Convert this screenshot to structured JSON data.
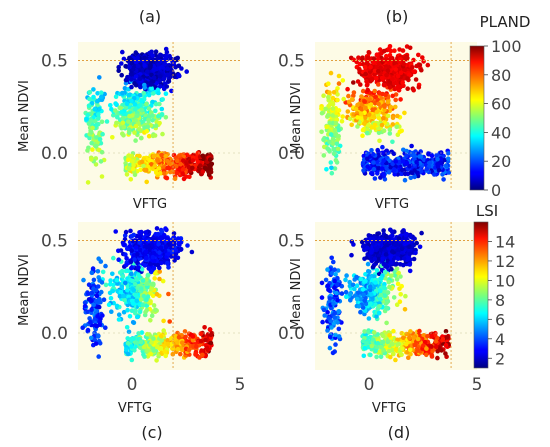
{
  "figure": {
    "colorbars": [
      {
        "label": "PLAND",
        "ticks": [
          "0",
          "20",
          "40",
          "60",
          "80",
          "100"
        ],
        "min": 0,
        "max": 100
      },
      {
        "label": "LSI",
        "ticks": [
          "2",
          "4",
          "6",
          "8",
          "10",
          "12",
          "14"
        ],
        "min": 1,
        "max": 16
      }
    ]
  },
  "chart_data": [
    {
      "type": "scatter",
      "panel_label": "(a)",
      "xlabel": "VFTG",
      "ylabel": "Mean NDVI",
      "xlim": [
        -2.5,
        5
      ],
      "ylim": [
        -0.2,
        0.6
      ],
      "yticks": [
        "0.0",
        "0.5"
      ],
      "xticks": [],
      "colorbar": "PLAND",
      "x_ref_line": 1.9,
      "y_ref_line": 0.5,
      "pattern": "a"
    },
    {
      "type": "scatter",
      "panel_label": "(b)",
      "xlabel": "VFTG",
      "ylabel": "Mean NDVI",
      "xlim": [
        -2.5,
        5
      ],
      "ylim": [
        -0.2,
        0.6
      ],
      "yticks": [
        "0.0",
        "0.5"
      ],
      "xticks": [],
      "colorbar": "PLAND",
      "x_ref_line": 3.8,
      "y_ref_line": 0.5,
      "pattern": "b"
    },
    {
      "type": "scatter",
      "panel_label": "(c)",
      "xlabel": "VFTG",
      "ylabel": "Mean NDVI",
      "xlim": [
        -2.5,
        5
      ],
      "ylim": [
        -0.2,
        0.6
      ],
      "yticks": [
        "0.0",
        "0.5"
      ],
      "xticks": [
        "0",
        "5"
      ],
      "colorbar": "LSI",
      "x_ref_line": 1.9,
      "y_ref_line": 0.5,
      "pattern": "c"
    },
    {
      "type": "scatter",
      "panel_label": "(d)",
      "xlabel": "VFTG",
      "ylabel": "Mean NDVI",
      "xlim": [
        -2.5,
        5
      ],
      "ylim": [
        -0.2,
        0.6
      ],
      "yticks": [
        "0.0",
        "0.5"
      ],
      "xticks": [
        "0",
        "5"
      ],
      "colorbar": "LSI",
      "x_ref_line": 3.8,
      "y_ref_line": 0.5,
      "pattern": "d"
    }
  ]
}
